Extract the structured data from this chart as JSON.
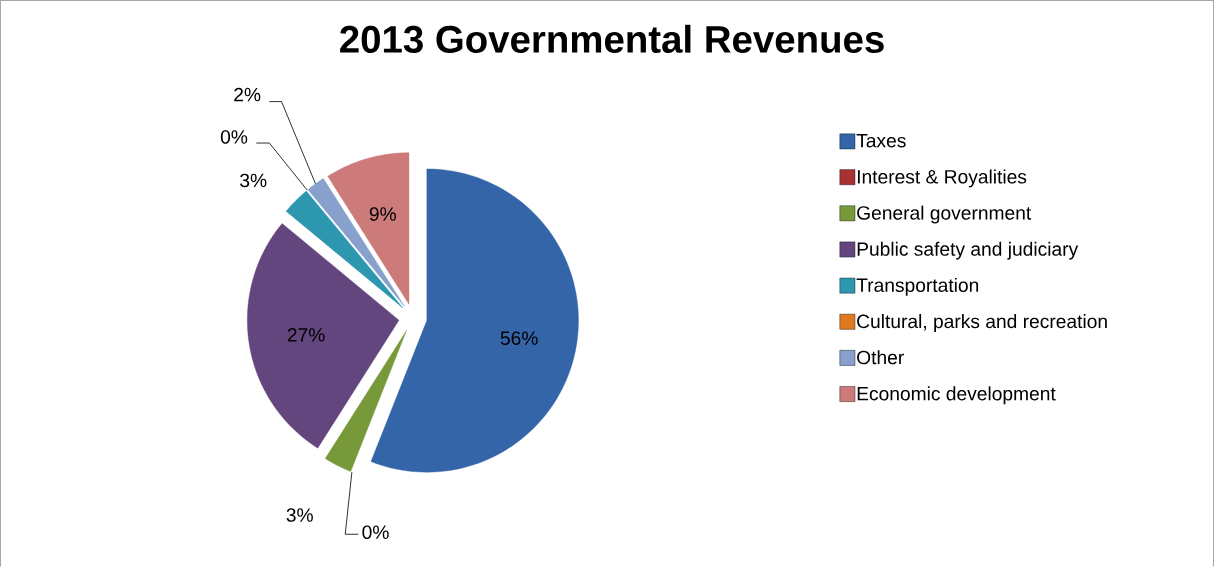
{
  "chart_data": {
    "type": "pie",
    "title": "2013 Governmental Revenues",
    "categories": [
      "Taxes",
      "Interest & Royalities",
      "General government",
      "Public safety and judiciary",
      "Transportation",
      "Cultural, parks and recreation",
      "Other",
      "Economic development"
    ],
    "values": [
      56,
      0,
      3,
      27,
      3,
      0,
      2,
      9
    ],
    "value_labels": [
      "56%",
      "0%",
      "3%",
      "27%",
      "3%",
      "0%",
      "2%",
      "9%"
    ],
    "colors": [
      "#3465a8",
      "#a83232",
      "#77993a",
      "#64467f",
      "#2e97b0",
      "#e07a20",
      "#87a0cc",
      "#cc7b7a"
    ],
    "legend": "right"
  }
}
